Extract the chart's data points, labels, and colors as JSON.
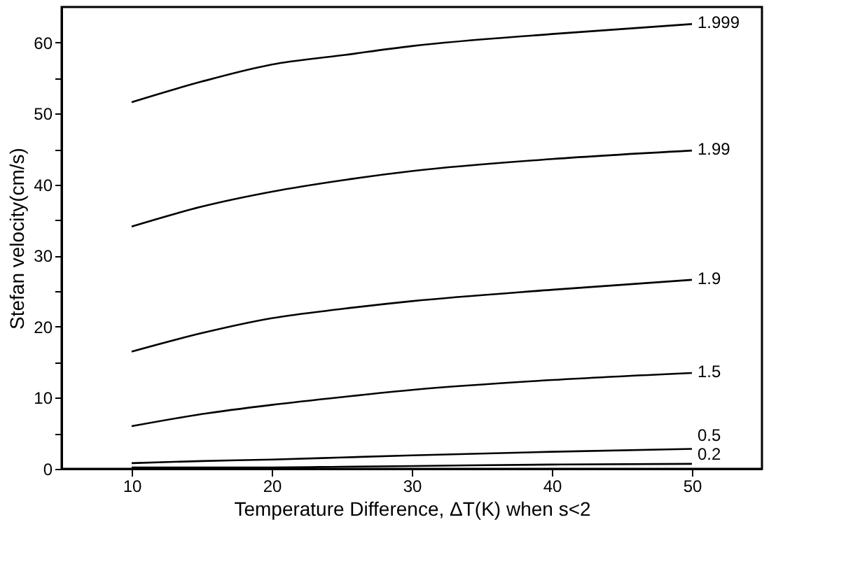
{
  "chart_data": {
    "type": "line",
    "xlabel": "Temperature Difference, ΔT(K) when s<2",
    "ylabel": "Stefan velocity(cm/s)",
    "xlim": [
      5,
      55
    ],
    "ylim": [
      0,
      65
    ],
    "xticks": [
      10,
      20,
      30,
      40,
      50
    ],
    "yticks": [
      0,
      {
        "value": 5,
        "label": null
      },
      10,
      {
        "value": 15,
        "label": null
      },
      20,
      {
        "value": 25,
        "label": null
      },
      30,
      {
        "value": 35,
        "label": null
      },
      40,
      {
        "value": 45,
        "label": null
      },
      50,
      {
        "value": 55,
        "label": null
      },
      60
    ],
    "x": [
      10,
      15,
      20,
      25,
      30,
      40,
      50
    ],
    "grid": false,
    "legend": false,
    "marker": "none",
    "line_style": "solid",
    "series": [
      {
        "name": "1.999",
        "color": "#000000",
        "values": [
          51.6,
          54.5,
          56.9,
          58.2,
          59.5,
          61.2,
          62.6
        ]
      },
      {
        "name": "1.99",
        "color": "#000000",
        "values": [
          34.1,
          36.9,
          39.0,
          40.6,
          41.9,
          43.6,
          44.8
        ]
      },
      {
        "name": "1.9",
        "color": "#000000",
        "values": [
          16.5,
          19.1,
          21.2,
          22.5,
          23.6,
          25.2,
          26.6
        ]
      },
      {
        "name": "1.5",
        "color": "#000000",
        "values": [
          6.0,
          7.7,
          9.0,
          10.1,
          11.1,
          12.5,
          13.5
        ]
      },
      {
        "name": "0.5",
        "color": "#000000",
        "values": [
          0.8,
          1.1,
          1.3,
          1.6,
          1.9,
          2.4,
          2.8
        ]
      },
      {
        "name": "0.2",
        "color": "#000000",
        "values": [
          0.2,
          0.2,
          0.2,
          0.3,
          0.4,
          0.6,
          0.7
        ]
      }
    ]
  }
}
